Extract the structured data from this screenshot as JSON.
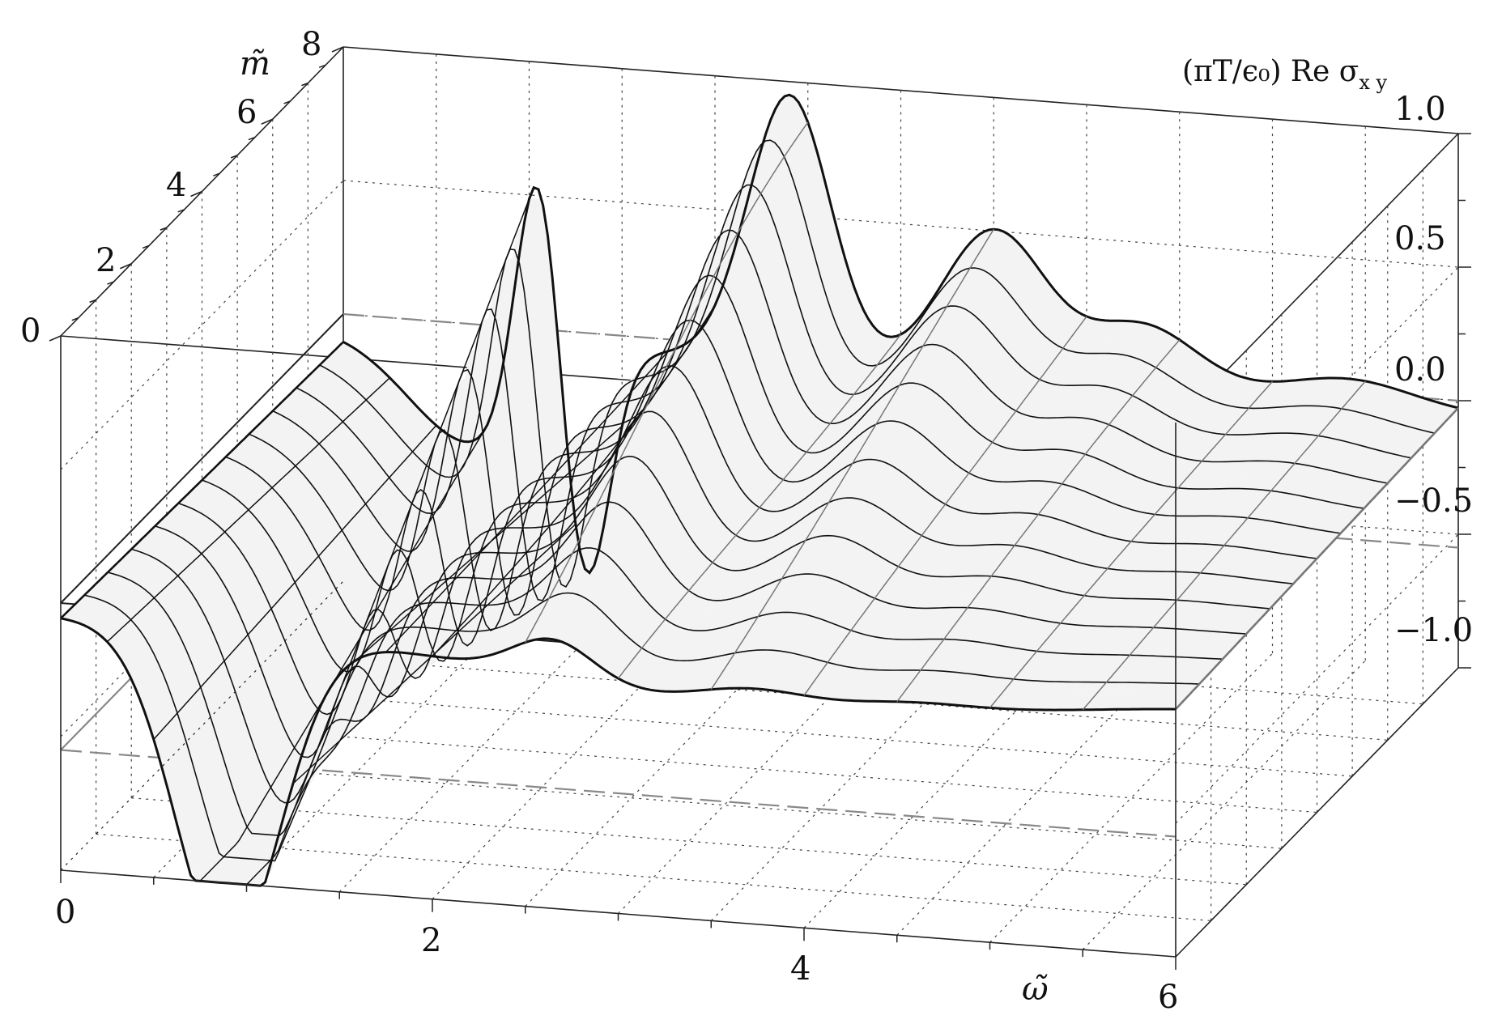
{
  "chart_data": {
    "type": "surface3d",
    "title": "",
    "xlabel": "ω̃",
    "ylabel": "m̃",
    "zlabel": "(πT/ϵ₀) Re σ",
    "zlabel_subscript": "x y",
    "xlim": [
      0,
      6
    ],
    "ylim": [
      0,
      8
    ],
    "zlim": [
      -1.0,
      1.0
    ],
    "x_ticks": [
      "0",
      "2",
      "4",
      "6"
    ],
    "y_ticks": [
      "0",
      "2",
      "4",
      "6",
      "8"
    ],
    "z_ticks": [
      "1.0",
      "0.5",
      "0.0",
      "−0.5",
      "−1.0"
    ],
    "grid": "dotted",
    "mesh_constant_m": [
      0,
      0.67,
      1.33,
      2,
      2.67,
      3.33,
      4,
      4.67,
      5.33,
      6,
      6.67,
      7.33,
      8
    ],
    "mesh_constant_omega": [
      0,
      0.25,
      0.5,
      0.75,
      1.0,
      1.25,
      1.5,
      1.75,
      2.0,
      2.5,
      3.0,
      3.5,
      4.0,
      4.5,
      5.0,
      5.5,
      6.0
    ],
    "series": [
      {
        "m": 0,
        "omega": [
          0,
          0.25,
          0.5,
          0.75,
          1.0,
          1.25,
          1.5,
          2.0,
          2.5,
          3.0,
          3.5,
          4.0,
          4.5,
          5.0,
          5.5,
          6.0
        ],
        "value": [
          0.0,
          -0.05,
          -0.7,
          -1.2,
          -1.15,
          -0.85,
          -0.5,
          -0.05,
          0.0,
          -0.08,
          -0.12,
          -0.1,
          -0.08,
          -0.1,
          -0.05,
          0.0
        ]
      },
      {
        "m": 8,
        "omega": [
          0,
          0.25,
          0.5,
          0.75,
          1.0,
          1.25,
          1.5,
          2.0,
          2.5,
          3.0,
          3.5,
          4.0,
          4.5,
          5.0,
          5.5,
          6.0
        ],
        "value": [
          0.0,
          0.0,
          0.0,
          0.15,
          0.9,
          -0.6,
          -0.85,
          1.0,
          0.0,
          0.55,
          0.0,
          0.2,
          0.05,
          0.02,
          0.0,
          0.0
        ]
      }
    ]
  }
}
